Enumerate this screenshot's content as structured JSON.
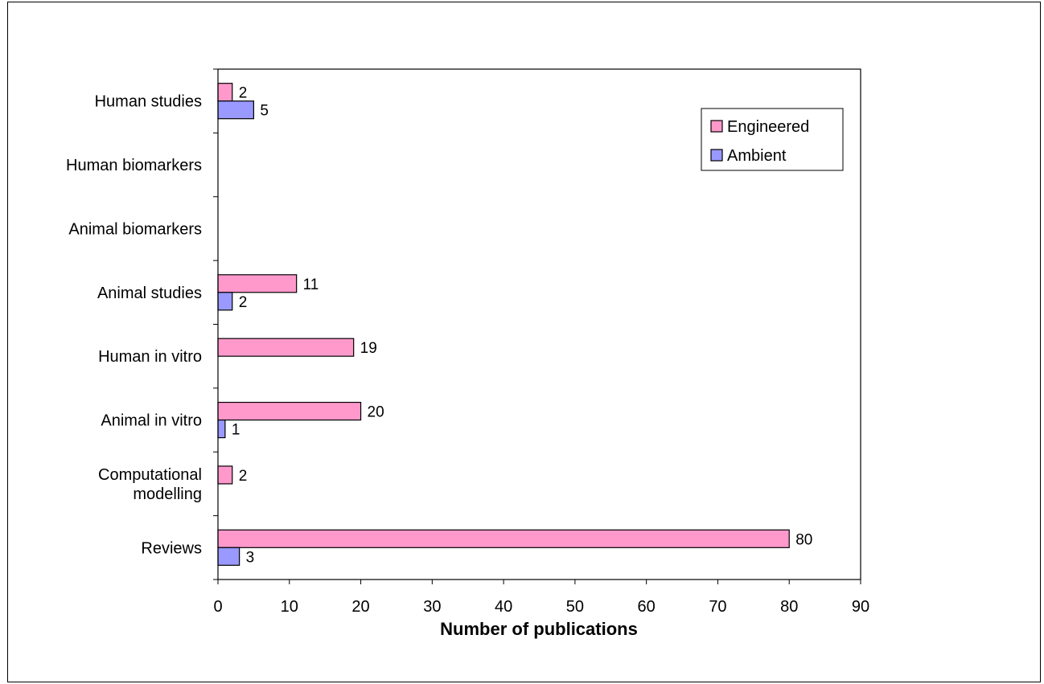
{
  "chart_data": {
    "type": "bar",
    "orientation": "horizontal",
    "title": "",
    "xlabel": "Number of publications",
    "ylabel": "",
    "xlim": [
      0,
      90
    ],
    "xticks": [
      "0",
      "10",
      "20",
      "30",
      "40",
      "50",
      "60",
      "70",
      "80",
      "90"
    ],
    "grid": false,
    "legend_position": "top-right",
    "categories": [
      [
        "Human studies"
      ],
      [
        "Human biomarkers"
      ],
      [
        "Animal biomarkers"
      ],
      [
        "Animal studies"
      ],
      [
        "Human in vitro"
      ],
      [
        "Animal in vitro"
      ],
      [
        "Computational",
        "modelling"
      ],
      [
        "Reviews"
      ]
    ],
    "series": [
      {
        "name": "Engineered",
        "color": "#ff99cc",
        "values": [
          2,
          null,
          null,
          11,
          19,
          20,
          2,
          80
        ],
        "labels": [
          "2",
          "",
          "",
          "11",
          "19",
          "20",
          "2",
          "80"
        ]
      },
      {
        "name": "Ambient",
        "color": "#9999ff",
        "values": [
          5,
          null,
          null,
          2,
          null,
          1,
          null,
          3
        ],
        "labels": [
          "5",
          "",
          "",
          "2",
          "",
          "1",
          "",
          "3"
        ]
      }
    ]
  }
}
